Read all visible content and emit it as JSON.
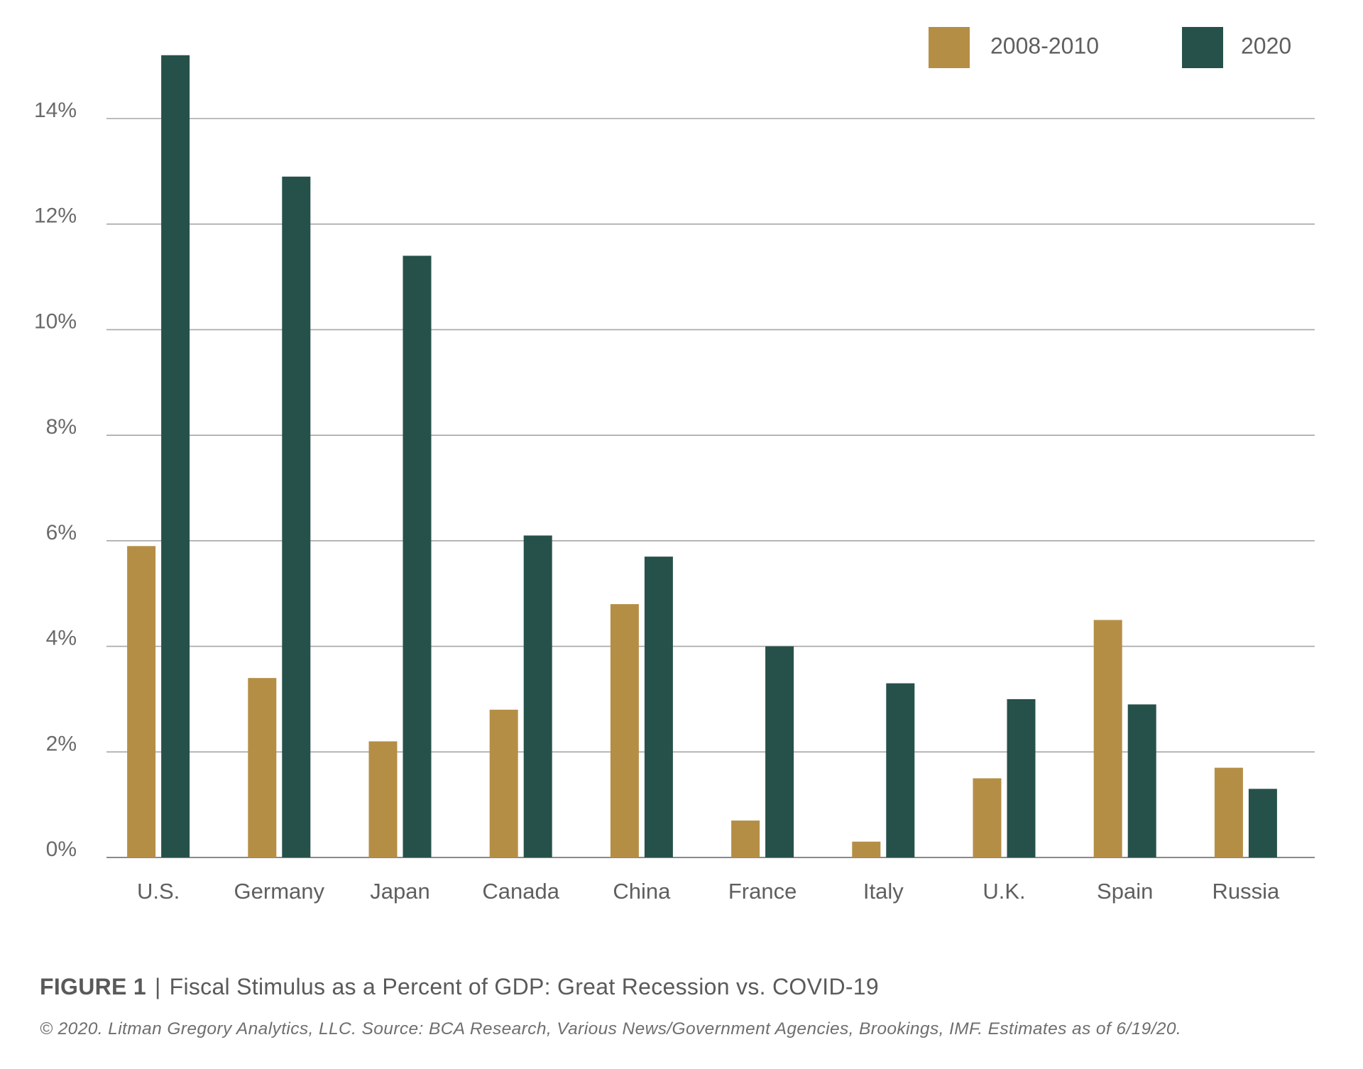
{
  "chart_data": {
    "type": "bar",
    "categories": [
      "U.S.",
      "Germany",
      "Japan",
      "Canada",
      "China",
      "France",
      "Italy",
      "U.K.",
      "Spain",
      "Russia"
    ],
    "series": [
      {
        "name": "2008-2010",
        "color": "#B58E46",
        "values": [
          5.9,
          3.4,
          2.2,
          2.8,
          4.8,
          0.7,
          0.3,
          1.5,
          4.5,
          1.7
        ]
      },
      {
        "name": "2020",
        "color": "#26514A",
        "values": [
          15.2,
          12.9,
          11.4,
          6.1,
          5.7,
          4.0,
          3.3,
          3.0,
          2.9,
          1.3
        ]
      }
    ],
    "y_ticks": [
      "0%",
      "2%",
      "4%",
      "6%",
      "8%",
      "10%",
      "12%",
      "14%"
    ],
    "y_tick_values": [
      0,
      2,
      4,
      6,
      8,
      10,
      12,
      14
    ],
    "ylim": [
      0,
      15.5
    ],
    "grid": true,
    "legend_position": "top-right",
    "title": "",
    "xlabel": "",
    "ylabel": ""
  },
  "caption": {
    "figure_label": "FIGURE 1",
    "separator": "|",
    "text": "Fiscal Stimulus as a Percent of GDP: Great Recession vs. COVID-19"
  },
  "source_note": "© 2020.  Litman Gregory Analytics, LLC.  Source: BCA Research, Various News/Government Agencies, Brookings, IMF.  Estimates as of 6/19/20."
}
